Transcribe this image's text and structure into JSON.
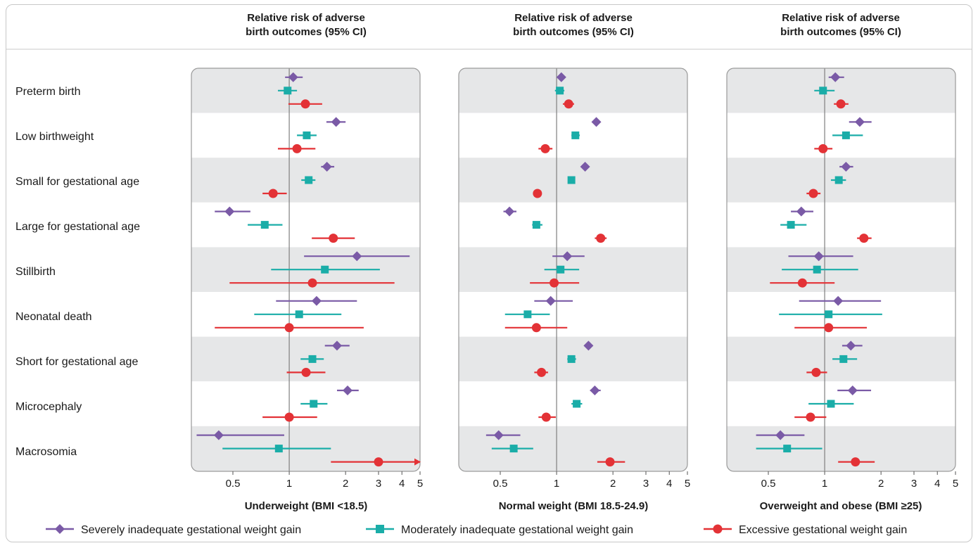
{
  "colors": {
    "severe": "#7a5aa6",
    "moderate": "#1aada8",
    "excessive": "#e33236",
    "band": "#e6e7e8",
    "refline": "#7f7f7f",
    "panel_border": "#9a9a9a"
  },
  "headers": [
    {
      "line1": "Relative risk of adverse",
      "line2": "birth outcomes (95% CI)"
    },
    {
      "line1": "Relative risk of adverse",
      "line2": "birth outcomes (95% CI)"
    },
    {
      "line1": "Relative risk of adverse",
      "line2": "birth outcomes (95% CI)"
    }
  ],
  "legend": [
    {
      "label": "Severely inadequate gestational weight gain",
      "marker": "diamond",
      "color_key": "severe"
    },
    {
      "label": "Moderately inadequate gestational weight gain",
      "marker": "square",
      "color_key": "moderate"
    },
    {
      "label": "Excessive gestational weight gain",
      "marker": "circle",
      "color_key": "excessive"
    }
  ],
  "chart_data": {
    "type": "forest",
    "scale": "log",
    "reference_value": 1,
    "xlim": [
      0.3,
      5
    ],
    "ticks": [
      {
        "value": 0.5,
        "label": "0.5"
      },
      {
        "value": 1,
        "label": "1"
      },
      {
        "value": 2,
        "label": "2"
      },
      {
        "value": 3,
        "label": "3"
      },
      {
        "value": 4,
        "label": "4"
      },
      {
        "value": 5,
        "label": "5"
      }
    ],
    "rows": [
      "Preterm birth",
      "Low birthweight",
      "Small for gestational age",
      "Large for gestational age",
      "Stillbirth",
      "Neonatal death",
      "Short for gestational age",
      "Microcephaly",
      "Macrosomia"
    ],
    "series": [
      "Severely inadequate gestational weight gain",
      "Moderately inadequate gestational weight gain",
      "Excessive gestational weight gain"
    ],
    "panels": [
      {
        "xlabel": "Underweight (BMI <18.5)",
        "estimates": [
          [
            [
              1.05,
              0.95,
              1.18
            ],
            [
              0.98,
              0.87,
              1.1
            ],
            [
              1.22,
              0.99,
              1.5
            ]
          ],
          [
            [
              1.78,
              1.58,
              2.0
            ],
            [
              1.24,
              1.1,
              1.4
            ],
            [
              1.1,
              0.87,
              1.38
            ]
          ],
          [
            [
              1.59,
              1.48,
              1.74
            ],
            [
              1.27,
              1.16,
              1.38
            ],
            [
              0.82,
              0.72,
              0.97
            ]
          ],
          [
            [
              0.48,
              0.4,
              0.62
            ],
            [
              0.74,
              0.6,
              0.92
            ],
            [
              1.72,
              1.32,
              2.24
            ]
          ],
          [
            [
              2.3,
              1.2,
              4.4
            ],
            [
              1.55,
              0.8,
              3.05
            ],
            [
              1.33,
              0.48,
              3.65
            ]
          ],
          [
            [
              1.4,
              0.85,
              2.3
            ],
            [
              1.13,
              0.65,
              1.9
            ],
            [
              1.0,
              0.4,
              2.5
            ]
          ],
          [
            [
              1.8,
              1.55,
              2.1
            ],
            [
              1.33,
              1.15,
              1.53
            ],
            [
              1.23,
              0.97,
              1.56
            ]
          ],
          [
            [
              2.05,
              1.8,
              2.35
            ],
            [
              1.35,
              1.15,
              1.6
            ],
            [
              1.0,
              0.72,
              1.41
            ]
          ],
          [
            [
              0.42,
              0.32,
              0.94
            ],
            [
              0.88,
              0.44,
              1.67
            ],
            [
              3.0,
              1.67,
              5.0
            ]
          ]
        ]
      },
      {
        "xlabel": "Normal weight (BMI 18.5-24.9)",
        "estimates": [
          [
            [
              1.06,
              1.03,
              1.09
            ],
            [
              1.04,
              0.98,
              1.1
            ],
            [
              1.16,
              1.08,
              1.24
            ]
          ],
          [
            [
              1.63,
              1.57,
              1.69
            ],
            [
              1.26,
              1.2,
              1.33
            ],
            [
              0.87,
              0.8,
              0.95
            ]
          ],
          [
            [
              1.42,
              1.38,
              1.47
            ],
            [
              1.2,
              1.17,
              1.23
            ],
            [
              0.79,
              0.75,
              0.83
            ]
          ],
          [
            [
              0.56,
              0.52,
              0.61
            ],
            [
              0.78,
              0.74,
              0.84
            ],
            [
              1.72,
              1.6,
              1.85
            ]
          ],
          [
            [
              1.14,
              0.95,
              1.41
            ],
            [
              1.05,
              0.86,
              1.32
            ],
            [
              0.97,
              0.72,
              1.32
            ]
          ],
          [
            [
              0.93,
              0.76,
              1.22
            ],
            [
              0.7,
              0.53,
              0.92
            ],
            [
              0.78,
              0.53,
              1.14
            ]
          ],
          [
            [
              1.48,
              1.41,
              1.56
            ],
            [
              1.2,
              1.14,
              1.27
            ],
            [
              0.83,
              0.76,
              0.9
            ]
          ],
          [
            [
              1.6,
              1.51,
              1.72
            ],
            [
              1.28,
              1.2,
              1.37
            ],
            [
              0.88,
              0.8,
              0.99
            ]
          ],
          [
            [
              0.49,
              0.42,
              0.64
            ],
            [
              0.59,
              0.45,
              0.75
            ],
            [
              1.93,
              1.65,
              2.32
            ]
          ]
        ]
      },
      {
        "xlabel": "Overweight and obese (BMI ≥25)",
        "estimates": [
          [
            [
              1.14,
              1.05,
              1.27
            ],
            [
              0.98,
              0.88,
              1.13
            ],
            [
              1.22,
              1.12,
              1.34
            ]
          ],
          [
            [
              1.54,
              1.35,
              1.78
            ],
            [
              1.3,
              1.1,
              1.6
            ],
            [
              0.98,
              0.88,
              1.1
            ]
          ],
          [
            [
              1.3,
              1.2,
              1.42
            ],
            [
              1.19,
              1.08,
              1.3
            ],
            [
              0.87,
              0.8,
              0.95
            ]
          ],
          [
            [
              0.75,
              0.66,
              0.87
            ],
            [
              0.66,
              0.58,
              0.8
            ],
            [
              1.62,
              1.49,
              1.78
            ]
          ],
          [
            [
              0.93,
              0.64,
              1.42
            ],
            [
              0.91,
              0.59,
              1.51
            ],
            [
              0.76,
              0.51,
              1.13
            ]
          ],
          [
            [
              1.18,
              0.73,
              2.0
            ],
            [
              1.05,
              0.57,
              2.03
            ],
            [
              1.05,
              0.69,
              1.68
            ]
          ],
          [
            [
              1.38,
              1.24,
              1.59
            ],
            [
              1.26,
              1.1,
              1.49
            ],
            [
              0.9,
              0.8,
              1.03
            ]
          ],
          [
            [
              1.41,
              1.17,
              1.77
            ],
            [
              1.08,
              0.82,
              1.43
            ],
            [
              0.84,
              0.69,
              1.02
            ]
          ],
          [
            [
              0.58,
              0.43,
              0.78
            ],
            [
              0.63,
              0.43,
              0.97
            ],
            [
              1.46,
              1.18,
              1.85
            ]
          ]
        ]
      }
    ]
  }
}
